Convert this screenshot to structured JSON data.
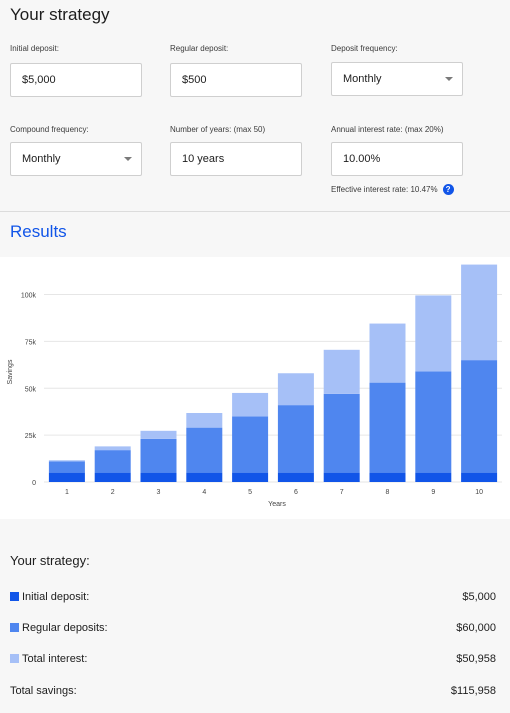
{
  "strategy": {
    "title": "Your strategy",
    "initial_deposit": {
      "label": "Initial deposit:",
      "value": "$5,000"
    },
    "regular_deposit": {
      "label": "Regular deposit:",
      "value": "$500"
    },
    "deposit_frequency": {
      "label": "Deposit frequency:",
      "value": "Monthly"
    },
    "compound_frequency": {
      "label": "Compound frequency:",
      "value": "Monthly"
    },
    "years": {
      "label": "Number of years: (max 50)",
      "value": "10 years"
    },
    "rate": {
      "label": "Annual interest rate: (max 20%)",
      "value": "10.00%"
    },
    "effective_rate_text": "Effective interest rate: 10.47%",
    "help_glyph": "?"
  },
  "results": {
    "title": "Results"
  },
  "chart_data": {
    "type": "bar",
    "stacked": true,
    "xlabel": "Years",
    "ylabel": "Savings",
    "categories": [
      "1",
      "2",
      "3",
      "4",
      "5",
      "6",
      "7",
      "8",
      "9",
      "10"
    ],
    "ylim": [
      0,
      120000
    ],
    "yticks": [
      0,
      25000,
      50000,
      75000,
      100000
    ],
    "ytick_labels": [
      "0",
      "25k",
      "50k",
      "75k",
      "100k"
    ],
    "grid": true,
    "series": [
      {
        "name": "Initial deposit",
        "color": "#1155e8",
        "values": [
          5000,
          5000,
          5000,
          5000,
          5000,
          5000,
          5000,
          5000,
          5000,
          5000
        ]
      },
      {
        "name": "Regular deposits",
        "color": "#4f86ef",
        "values": [
          6000,
          12000,
          18000,
          24000,
          30000,
          36000,
          42000,
          48000,
          54000,
          60000
        ]
      },
      {
        "name": "Total interest",
        "color": "#a6c0f7",
        "values": [
          600,
          2000,
          4300,
          7800,
          12500,
          17000,
          23500,
          31500,
          40500,
          50958
        ]
      }
    ]
  },
  "summary": {
    "title": "Your strategy:",
    "initial": {
      "label": "Initial deposit:",
      "value": "$5,000",
      "color": "#1155e8"
    },
    "regular": {
      "label": "Regular deposits:",
      "value": "$60,000",
      "color": "#4f86ef"
    },
    "interest": {
      "label": "Total interest:",
      "value": "$50,958",
      "color": "#a6c0f7"
    },
    "total": {
      "label": "Total savings:",
      "value": "$115,958"
    }
  }
}
